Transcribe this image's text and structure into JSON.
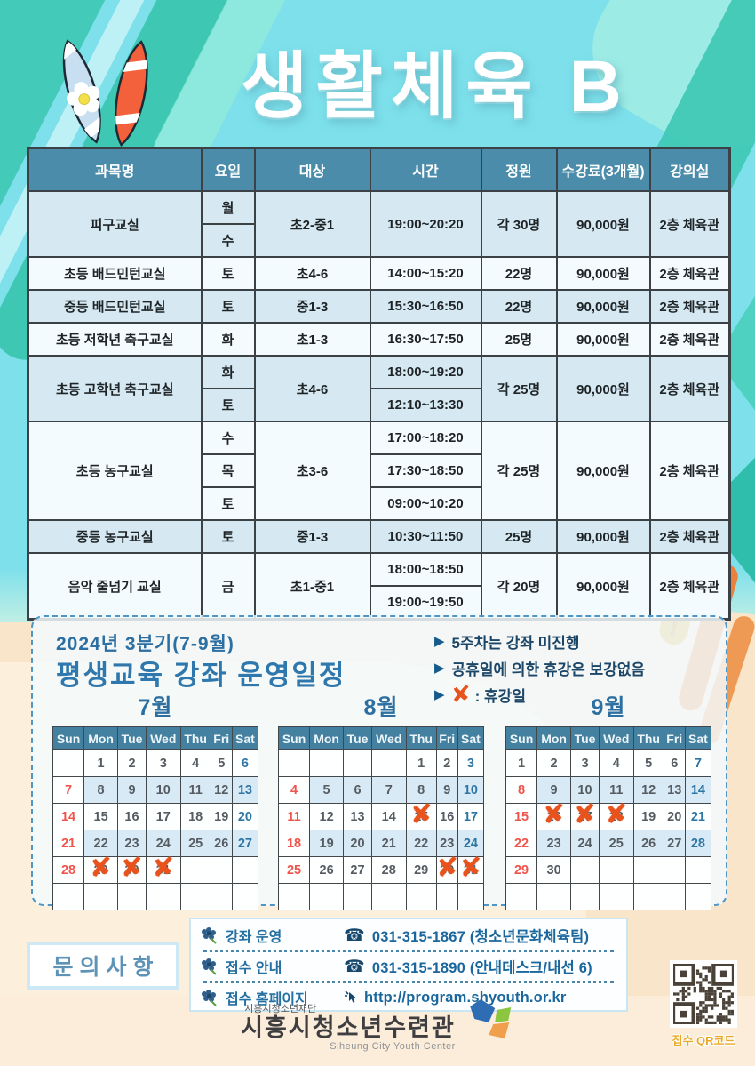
{
  "header": {
    "title": "생활체육 B"
  },
  "course_table": {
    "columns": [
      "과목명",
      "요일",
      "대상",
      "시간",
      "정원",
      "수강료(3개월)",
      "강의실"
    ],
    "courses": [
      {
        "name": "피구교실",
        "shaded": true,
        "days": [
          {
            "text": "월",
            "span": 1
          },
          {
            "text": "수",
            "span": 1
          }
        ],
        "target": "초2-중1",
        "times": [
          {
            "text": "19:00~20:20",
            "span": 2
          }
        ],
        "capacity": "각 30명",
        "fee": "90,000원",
        "room": "2층 체육관"
      },
      {
        "name": "초등 배드민턴교실",
        "shaded": false,
        "days": [
          {
            "text": "토",
            "span": 1
          }
        ],
        "target": "초4-6",
        "times": [
          {
            "text": "14:00~15:20",
            "span": 1
          }
        ],
        "capacity": "22명",
        "fee": "90,000원",
        "room": "2층 체육관"
      },
      {
        "name": "중등 배드민턴교실",
        "shaded": true,
        "days": [
          {
            "text": "토",
            "span": 1
          }
        ],
        "target": "중1-3",
        "times": [
          {
            "text": "15:30~16:50",
            "span": 1
          }
        ],
        "capacity": "22명",
        "fee": "90,000원",
        "room": "2층 체육관"
      },
      {
        "name": "초등 저학년 축구교실",
        "shaded": false,
        "days": [
          {
            "text": "화",
            "span": 1
          }
        ],
        "target": "초1-3",
        "times": [
          {
            "text": "16:30~17:50",
            "span": 1
          }
        ],
        "capacity": "25명",
        "fee": "90,000원",
        "room": "2층 체육관"
      },
      {
        "name": "초등 고학년 축구교실",
        "shaded": true,
        "days": [
          {
            "text": "화",
            "span": 1
          },
          {
            "text": "토",
            "span": 1
          }
        ],
        "target": "초4-6",
        "times": [
          {
            "text": "18:00~19:20",
            "span": 1
          },
          {
            "text": "12:10~13:30",
            "span": 1
          }
        ],
        "capacity": "각 25명",
        "fee": "90,000원",
        "room": "2층 체육관"
      },
      {
        "name": "초등 농구교실",
        "shaded": false,
        "days": [
          {
            "text": "수",
            "span": 1
          },
          {
            "text": "목",
            "span": 1
          },
          {
            "text": "토",
            "span": 1
          }
        ],
        "target": "초3-6",
        "times": [
          {
            "text": "17:00~18:20",
            "span": 1
          },
          {
            "text": "17:30~18:50",
            "span": 1
          },
          {
            "text": "09:00~10:20",
            "span": 1
          }
        ],
        "capacity": "각 25명",
        "fee": "90,000원",
        "room": "2층 체육관"
      },
      {
        "name": "중등 농구교실",
        "shaded": true,
        "days": [
          {
            "text": "토",
            "span": 1
          }
        ],
        "target": "중1-3",
        "times": [
          {
            "text": "10:30~11:50",
            "span": 1
          }
        ],
        "capacity": "25명",
        "fee": "90,000원",
        "room": "2층 체육관"
      },
      {
        "name": "음악 줄넘기 교실",
        "shaded": false,
        "days": [
          {
            "text": "금",
            "span": 2
          }
        ],
        "target": "초1-중1",
        "times": [
          {
            "text": "18:00~18:50",
            "span": 1
          },
          {
            "text": "19:00~19:50",
            "span": 1
          }
        ],
        "capacity": "각 20명",
        "fee": "90,000원",
        "room": "2층 체육관"
      }
    ]
  },
  "schedule": {
    "subtitle": "2024년 3분기(7-9월)",
    "title": "평생교육 강좌 운영일정",
    "legend_1": "5주차는 강좌 미진행",
    "legend_2": "공휴일에 의한 휴강은 보강없음",
    "legend_x_mark": "✘",
    "legend_3": ": 휴강일",
    "day_headers": [
      "Sun",
      "Mon",
      "Tue",
      "Wed",
      "Thu",
      "Fri",
      "Sat"
    ],
    "months": [
      {
        "title": "7월",
        "weeks": [
          [
            null,
            {
              "n": "1"
            },
            {
              "n": "2"
            },
            {
              "n": "3"
            },
            {
              "n": "4"
            },
            {
              "n": "5"
            },
            {
              "n": "6",
              "c": "sat"
            }
          ],
          [
            {
              "n": "7",
              "c": "sun"
            },
            {
              "n": "8",
              "bg": true
            },
            {
              "n": "9",
              "bg": true
            },
            {
              "n": "10",
              "bg": true
            },
            {
              "n": "11",
              "bg": true
            },
            {
              "n": "12",
              "bg": true
            },
            {
              "n": "13",
              "c": "sat",
              "bg": true
            }
          ],
          [
            {
              "n": "14",
              "c": "sun"
            },
            {
              "n": "15"
            },
            {
              "n": "16"
            },
            {
              "n": "17"
            },
            {
              "n": "18"
            },
            {
              "n": "19"
            },
            {
              "n": "20",
              "c": "sat"
            }
          ],
          [
            {
              "n": "21",
              "c": "sun"
            },
            {
              "n": "22",
              "bg": true
            },
            {
              "n": "23",
              "bg": true
            },
            {
              "n": "24",
              "bg": true
            },
            {
              "n": "25",
              "bg": true
            },
            {
              "n": "26",
              "bg": true
            },
            {
              "n": "27",
              "c": "sat",
              "bg": true
            }
          ],
          [
            {
              "n": "28",
              "c": "sun"
            },
            {
              "n": "29",
              "x": true
            },
            {
              "n": "30",
              "x": true
            },
            {
              "n": "31",
              "x": true
            },
            null,
            null,
            null
          ],
          [
            null,
            null,
            null,
            null,
            null,
            null,
            null
          ]
        ]
      },
      {
        "title": "8월",
        "weeks": [
          [
            null,
            null,
            null,
            null,
            {
              "n": "1"
            },
            {
              "n": "2"
            },
            {
              "n": "3",
              "c": "sat"
            }
          ],
          [
            {
              "n": "4",
              "c": "sun"
            },
            {
              "n": "5",
              "bg": true
            },
            {
              "n": "6",
              "bg": true
            },
            {
              "n": "7",
              "bg": true
            },
            {
              "n": "8",
              "bg": true
            },
            {
              "n": "9",
              "bg": true
            },
            {
              "n": "10",
              "c": "sat",
              "bg": true
            }
          ],
          [
            {
              "n": "11",
              "c": "sun"
            },
            {
              "n": "12"
            },
            {
              "n": "13"
            },
            {
              "n": "14"
            },
            {
              "n": "15",
              "x": true
            },
            {
              "n": "16"
            },
            {
              "n": "17",
              "c": "sat"
            }
          ],
          [
            {
              "n": "18",
              "c": "sun"
            },
            {
              "n": "19",
              "bg": true
            },
            {
              "n": "20",
              "bg": true
            },
            {
              "n": "21",
              "bg": true
            },
            {
              "n": "22",
              "bg": true
            },
            {
              "n": "23",
              "bg": true
            },
            {
              "n": "24",
              "c": "sat",
              "bg": true
            }
          ],
          [
            {
              "n": "25",
              "c": "sun"
            },
            {
              "n": "26"
            },
            {
              "n": "27"
            },
            {
              "n": "28"
            },
            {
              "n": "29"
            },
            {
              "n": "30",
              "x": true
            },
            {
              "n": "31",
              "c": "sat",
              "x": true
            }
          ],
          [
            null,
            null,
            null,
            null,
            null,
            null,
            null
          ]
        ]
      },
      {
        "title": "9월",
        "weeks": [
          [
            {
              "n": "1"
            },
            {
              "n": "2"
            },
            {
              "n": "3"
            },
            {
              "n": "4"
            },
            {
              "n": "5"
            },
            {
              "n": "6"
            },
            {
              "n": "7",
              "c": "sat"
            }
          ],
          [
            {
              "n": "8",
              "c": "sun"
            },
            {
              "n": "9",
              "bg": true
            },
            {
              "n": "10",
              "bg": true
            },
            {
              "n": "11",
              "bg": true
            },
            {
              "n": "12",
              "bg": true
            },
            {
              "n": "13",
              "bg": true
            },
            {
              "n": "14",
              "c": "sat",
              "bg": true
            }
          ],
          [
            {
              "n": "15",
              "c": "sun"
            },
            {
              "n": "16",
              "x": true
            },
            {
              "n": "17",
              "x": true
            },
            {
              "n": "18",
              "x": true
            },
            {
              "n": "19"
            },
            {
              "n": "20"
            },
            {
              "n": "21",
              "c": "sat"
            }
          ],
          [
            {
              "n": "22",
              "c": "sun"
            },
            {
              "n": "23",
              "bg": true
            },
            {
              "n": "24",
              "bg": true
            },
            {
              "n": "25",
              "bg": true
            },
            {
              "n": "26",
              "bg": true
            },
            {
              "n": "27",
              "bg": true
            },
            {
              "n": "28",
              "c": "sat",
              "bg": true
            }
          ],
          [
            {
              "n": "29",
              "c": "sun"
            },
            {
              "n": "30"
            },
            null,
            null,
            null,
            null,
            null
          ],
          [
            null,
            null,
            null,
            null,
            null,
            null,
            null
          ]
        ]
      }
    ]
  },
  "contact": {
    "box_title": "문의사항",
    "rows": [
      {
        "label": "강좌 운영",
        "phone_icon": "☎",
        "value": "031-315-1867 (청소년문화체육팀)"
      },
      {
        "label": "접수 안내",
        "phone_icon": "☎",
        "value": "031-315-1890 (안내데스크/내선 6)"
      },
      {
        "label": "접수 홈페이지",
        "value": "http://program.shyouth.or.kr"
      }
    ]
  },
  "qr": {
    "label": "접수 QR코드"
  },
  "footer": {
    "org_small": "시흥시청소년재단",
    "org_main": "시흥시청소년수련관",
    "org_eng": "Siheung City Youth Center"
  },
  "colors": {
    "bg_cyan": "#7DE0EB",
    "accent_teal": "#3EC8B4",
    "table_header": "#4A8CA9",
    "calendar_header": "#44809F",
    "shaded_week": "#D8EAF6",
    "sunday_red": "#F0544C",
    "saturday_blue": "#2E75A3",
    "closed_x_orange": "#E8531D",
    "sand": "#F9E5CA",
    "title_blue": "#2D6FA0",
    "qr_label_gold": "#E9A92B"
  }
}
